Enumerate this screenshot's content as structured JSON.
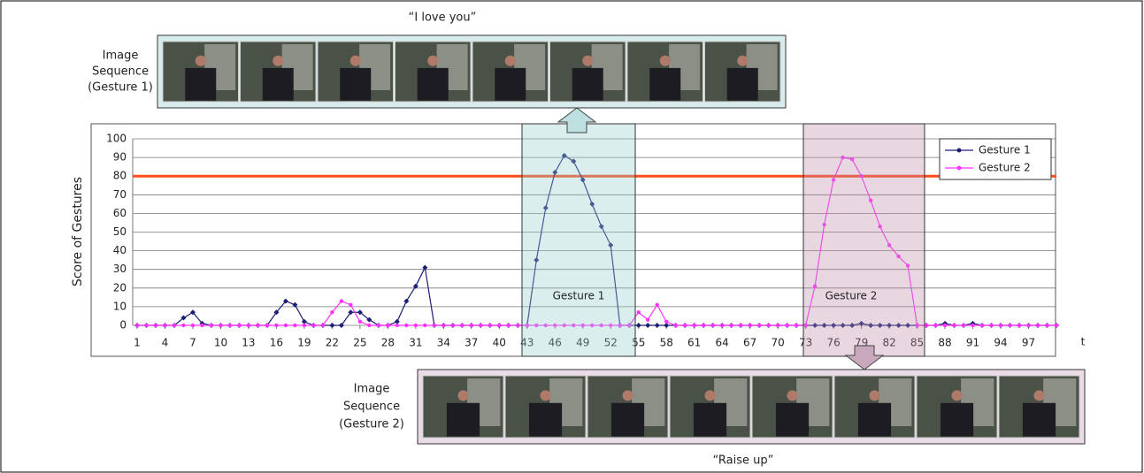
{
  "chart_data": {
    "type": "line",
    "top_caption": "“I love you”",
    "top_sequence_label": [
      "Image",
      "Sequence",
      "(Gesture 1)"
    ],
    "bottom_caption": "“Raise up”",
    "bottom_sequence_label": [
      "Image",
      "Sequence",
      "(Gesture 2)"
    ],
    "y_label": "Score of Gestures",
    "x_label": "t",
    "region_labels": [
      "Gesture 1",
      "Gesture 2"
    ],
    "x": [
      1,
      2,
      3,
      4,
      5,
      6,
      7,
      8,
      9,
      10,
      11,
      12,
      13,
      14,
      15,
      16,
      17,
      18,
      19,
      20,
      21,
      22,
      23,
      24,
      25,
      26,
      27,
      28,
      29,
      30,
      31,
      32,
      33,
      34,
      35,
      36,
      37,
      38,
      39,
      40,
      41,
      42,
      43,
      44,
      45,
      46,
      47,
      48,
      49,
      50,
      51,
      52,
      53,
      54,
      55,
      56,
      57,
      58,
      59,
      60,
      61,
      62,
      63,
      64,
      65,
      66,
      67,
      68,
      69,
      70,
      71,
      72,
      73,
      74,
      75,
      76,
      77,
      78,
      79,
      80,
      81,
      82,
      83,
      84,
      85,
      86,
      87,
      88,
      89,
      90,
      91,
      92,
      93,
      94,
      95,
      96,
      97,
      98,
      99,
      100
    ],
    "series": [
      {
        "name": "Gesture 1",
        "color": "#1c1f73",
        "marker": "diamond",
        "values": [
          0,
          0,
          0,
          0,
          0,
          4,
          7,
          1,
          0,
          0,
          0,
          0,
          0,
          0,
          0,
          7,
          13,
          11,
          2,
          0,
          0,
          0,
          0,
          7,
          7,
          3,
          0,
          0,
          2,
          13,
          21,
          31,
          0,
          0,
          0,
          0,
          0,
          0,
          0,
          0,
          0,
          0,
          0,
          35,
          63,
          82,
          91,
          88,
          78,
          65,
          53,
          43,
          0,
          0,
          0,
          0,
          0,
          0,
          0,
          0,
          0,
          0,
          0,
          0,
          0,
          0,
          0,
          0,
          0,
          0,
          0,
          0,
          0,
          0,
          0,
          0,
          0,
          0,
          1,
          0,
          0,
          0,
          0,
          0,
          0,
          0,
          0,
          1,
          0,
          0,
          1,
          0,
          0,
          0,
          0,
          0,
          0,
          0,
          0,
          0
        ]
      },
      {
        "name": "Gesture 2",
        "color": "#ff33ff",
        "marker": "circle",
        "values": [
          0,
          0,
          0,
          0,
          0,
          0,
          0,
          0,
          0,
          0,
          0,
          0,
          0,
          0,
          0,
          0,
          0,
          0,
          0,
          0,
          0,
          7,
          13,
          11,
          2,
          0,
          0,
          0,
          0,
          0,
          0,
          0,
          0,
          0,
          0,
          0,
          0,
          0,
          0,
          0,
          0,
          0,
          0,
          0,
          0,
          0,
          0,
          0,
          0,
          0,
          0,
          0,
          0,
          0,
          7,
          3,
          11,
          2,
          0,
          0,
          0,
          0,
          0,
          0,
          0,
          0,
          0,
          0,
          0,
          0,
          0,
          0,
          0,
          21,
          54,
          78,
          90,
          89,
          80,
          67,
          53,
          43,
          37,
          32,
          0,
          0,
          0,
          0,
          0,
          0,
          0,
          0,
          0,
          0,
          0,
          0,
          0,
          0,
          0,
          0
        ]
      }
    ],
    "threshold": {
      "value": 80,
      "color": "#ff4a1a"
    },
    "xlim": [
      1,
      100
    ],
    "xticks": [
      1,
      4,
      7,
      10,
      13,
      16,
      19,
      22,
      25,
      28,
      31,
      34,
      37,
      40,
      43,
      46,
      49,
      52,
      55,
      58,
      61,
      64,
      67,
      70,
      73,
      76,
      79,
      82,
      85,
      88,
      91,
      94,
      97
    ],
    "ylim": [
      0,
      100
    ],
    "yticks": [
      0,
      10,
      20,
      30,
      40,
      50,
      60,
      70,
      80,
      90,
      100
    ],
    "grid": true,
    "legend": "top-right"
  }
}
